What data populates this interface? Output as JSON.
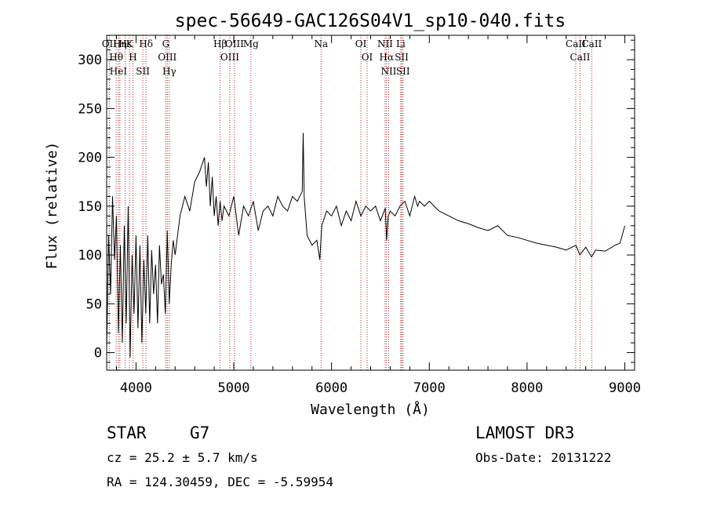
{
  "chart_data": {
    "type": "line",
    "title": "spec-56649-GAC126S04V1_sp10-040.fits",
    "xlabel": "Wavelength (Å)",
    "ylabel": "Flux (relative)",
    "xlim": [
      3700,
      9100
    ],
    "ylim": [
      -18,
      325
    ],
    "xticks": [
      4000,
      5000,
      6000,
      7000,
      8000,
      9000
    ],
    "yticks": [
      0,
      50,
      100,
      150,
      200,
      250,
      300
    ],
    "grid": false,
    "series": [
      {
        "name": "spectrum",
        "x": [
          3700,
          3720,
          3740,
          3760,
          3780,
          3800,
          3820,
          3840,
          3860,
          3880,
          3900,
          3920,
          3940,
          3960,
          3980,
          4000,
          4020,
          4040,
          4060,
          4080,
          4100,
          4120,
          4140,
          4160,
          4180,
          4200,
          4220,
          4240,
          4260,
          4280,
          4300,
          4320,
          4340,
          4360,
          4380,
          4400,
          4450,
          4500,
          4550,
          4600,
          4650,
          4700,
          4720,
          4740,
          4760,
          4780,
          4800,
          4820,
          4840,
          4860,
          4880,
          4900,
          4950,
          5000,
          5050,
          5100,
          5150,
          5200,
          5250,
          5300,
          5350,
          5400,
          5450,
          5500,
          5550,
          5600,
          5650,
          5700,
          5710,
          5720,
          5750,
          5800,
          5850,
          5880,
          5900,
          5950,
          6000,
          6050,
          6100,
          6150,
          6200,
          6250,
          6300,
          6350,
          6400,
          6450,
          6500,
          6550,
          6563,
          6580,
          6600,
          6650,
          6700,
          6750,
          6800,
          6850,
          6880,
          6900,
          6950,
          7000,
          7100,
          7200,
          7300,
          7400,
          7500,
          7600,
          7700,
          7800,
          7900,
          8000,
          8100,
          8200,
          8300,
          8400,
          8500,
          8540,
          8600,
          8660,
          8700,
          8800,
          8900,
          8950,
          9000
        ],
        "values": [
          5,
          120,
          60,
          160,
          95,
          140,
          20,
          110,
          10,
          130,
          30,
          150,
          -5,
          100,
          40,
          120,
          25,
          110,
          10,
          95,
          40,
          120,
          30,
          105,
          60,
          90,
          30,
          110,
          70,
          80,
          40,
          125,
          50,
          90,
          115,
          100,
          140,
          160,
          145,
          175,
          185,
          200,
          170,
          195,
          150,
          180,
          140,
          160,
          130,
          155,
          135,
          150,
          140,
          160,
          120,
          150,
          140,
          155,
          125,
          145,
          150,
          140,
          160,
          150,
          145,
          160,
          155,
          165,
          225,
          160,
          120,
          110,
          115,
          95,
          130,
          145,
          140,
          150,
          130,
          145,
          135,
          155,
          140,
          150,
          145,
          150,
          135,
          148,
          115,
          140,
          145,
          140,
          150,
          155,
          140,
          160,
          150,
          155,
          150,
          155,
          145,
          140,
          135,
          132,
          128,
          125,
          130,
          120,
          118,
          115,
          112,
          110,
          108,
          105,
          110,
          100,
          108,
          98,
          105,
          104,
          110,
          112,
          130
        ]
      }
    ],
    "annotation_lines": [
      {
        "label": "Hθ",
        "x": 3797
      },
      {
        "label": "OII",
        "x": 3727
      },
      {
        "label": "HeI",
        "x": 3820
      },
      {
        "label": "Hη",
        "x": 3835
      },
      {
        "label": "Hε",
        "x": 3889
      },
      {
        "label": "K",
        "x": 3934
      },
      {
        "label": "H",
        "x": 3969
      },
      {
        "label": "SII",
        "x": 4070
      },
      {
        "label": "Hδ",
        "x": 4102
      },
      {
        "label": "OIII",
        "x": 4320
      },
      {
        "label": "Hγ",
        "x": 4340
      },
      {
        "label": "G",
        "x": 4305
      },
      {
        "label": "Hβ",
        "x": 4861
      },
      {
        "label": "OIII",
        "x": 4959
      },
      {
        "label": "OIII",
        "x": 5007
      },
      {
        "label": "Mg",
        "x": 5175
      },
      {
        "label": "Na",
        "x": 5893
      },
      {
        "label": "OI",
        "x": 6300
      },
      {
        "label": "OI",
        "x": 6364
      },
      {
        "label": "Hα",
        "x": 6563
      },
      {
        "label": "NII",
        "x": 6548
      },
      {
        "label": "NII",
        "x": 6584
      },
      {
        "label": "SII",
        "x": 6717
      },
      {
        "label": "Li",
        "x": 6708
      },
      {
        "label": "SII",
        "x": 6731
      },
      {
        "label": "CaII",
        "x": 8498
      },
      {
        "label": "CaII",
        "x": 8542
      },
      {
        "label": "CaII",
        "x": 8662
      }
    ]
  },
  "info": {
    "object_class": "STAR",
    "subclass": "G7",
    "survey": "LAMOST DR3",
    "redshift": "cz = 25.2 ± 5.7 km/s",
    "obs_date": "Obs-Date: 20131222",
    "coords": "RA = 124.30459, DEC =  -5.59954"
  },
  "colors": {
    "axis": "#000000",
    "spectrum": "#000000",
    "line_marker": "#b22222"
  }
}
